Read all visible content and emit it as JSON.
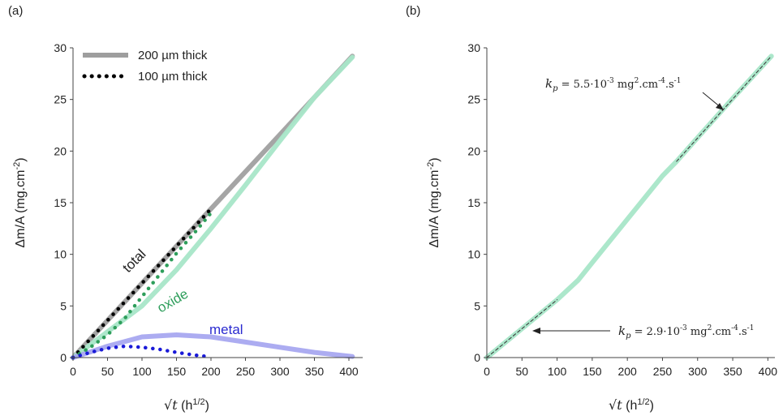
{
  "chart_data": [
    {
      "type": "line",
      "panel": "(a)",
      "xlabel_sym": "√t",
      "xlabel_unit": "(h",
      "xlabel_exp": "1/2",
      "xlabel_close": ")",
      "ylabel": "Δm/A (mg.cm",
      "ylabel_exp": "-2",
      "ylabel_close": ")",
      "xlim": [
        0,
        420
      ],
      "ylim": [
        0,
        30
      ],
      "xticks": [
        0,
        50,
        100,
        150,
        200,
        250,
        300,
        350,
        400
      ],
      "yticks": [
        0,
        5,
        10,
        15,
        20,
        25,
        30
      ],
      "legend": [
        {
          "label": "200 µm thick",
          "style": "solid",
          "color": "#9e9e9e"
        },
        {
          "label": "100 µm thick",
          "style": "dotted",
          "color": "#000000"
        }
      ],
      "annotations": [
        {
          "text": "total",
          "color": "#000000"
        },
        {
          "text": "oxide",
          "color": "#2e9e5b"
        },
        {
          "text": "metal",
          "color": "#2a2ad0"
        }
      ],
      "series": [
        {
          "thickness": "200 µm thick",
          "label": "total",
          "color": "#a0a0a0",
          "style": "solid",
          "x": [
            0,
            50,
            100,
            150,
            200,
            250,
            300,
            350,
            405
          ],
          "y": [
            0,
            3.6,
            7.2,
            10.8,
            14.4,
            18.0,
            21.6,
            25.2,
            29.2
          ]
        },
        {
          "thickness": "200 µm thick",
          "label": "oxide",
          "color": "#a8e6c8",
          "style": "solid",
          "x": [
            0,
            50,
            100,
            150,
            200,
            250,
            300,
            350,
            405
          ],
          "y": [
            0,
            2.5,
            5.0,
            8.5,
            12.5,
            16.7,
            21.0,
            25.2,
            29.1
          ]
        },
        {
          "thickness": "200 µm thick",
          "label": "metal",
          "color": "#a8a8f0",
          "style": "solid",
          "x": [
            0,
            50,
            100,
            150,
            200,
            250,
            300,
            350,
            405
          ],
          "y": [
            0,
            1.1,
            2.0,
            2.2,
            2.0,
            1.5,
            1.0,
            0.5,
            0.1
          ]
        },
        {
          "thickness": "100 µm thick",
          "label": "total",
          "color": "#000000",
          "style": "dotted",
          "x": [
            0,
            25,
            50,
            75,
            100,
            125,
            150,
            175,
            200
          ],
          "y": [
            0,
            1.8,
            3.6,
            5.4,
            7.2,
            9.0,
            10.8,
            12.6,
            14.4
          ]
        },
        {
          "thickness": "100 µm thick",
          "label": "oxide",
          "color": "#2e9e5b",
          "style": "dotted",
          "x": [
            0,
            25,
            50,
            75,
            100,
            125,
            150,
            175,
            200
          ],
          "y": [
            0,
            1.0,
            2.2,
            3.8,
            5.9,
            8.0,
            10.1,
            12.0,
            14.0
          ]
        },
        {
          "thickness": "100 µm thick",
          "label": "metal",
          "color": "#1a1ad8",
          "style": "dotted",
          "x": [
            0,
            25,
            50,
            75,
            100,
            125,
            150,
            175,
            195
          ],
          "y": [
            0,
            0.5,
            0.9,
            1.1,
            1.0,
            0.8,
            0.5,
            0.25,
            0.1
          ]
        }
      ]
    },
    {
      "type": "line",
      "panel": "(b)",
      "xlabel_sym": "√t",
      "xlabel_unit": "(h",
      "xlabel_exp": "1/2",
      "xlabel_close": ")",
      "ylabel": "Δm/A (mg.cm",
      "ylabel_exp": "-2",
      "ylabel_close": ")",
      "xlim": [
        0,
        410
      ],
      "ylim": [
        0,
        30
      ],
      "xticks": [
        0,
        50,
        100,
        150,
        200,
        250,
        300,
        350,
        400
      ],
      "yticks": [
        0,
        5,
        10,
        15,
        20,
        25,
        30
      ],
      "series": [
        {
          "label": "oxide",
          "color": "#a8e6c8",
          "style": "solid",
          "x": [
            0,
            50,
            100,
            130,
            150,
            200,
            250,
            270,
            300,
            350,
            405
          ],
          "y": [
            0,
            2.8,
            5.6,
            7.5,
            9.2,
            13.4,
            17.6,
            19.0,
            21.3,
            25.1,
            29.2
          ]
        },
        {
          "label": "fit 1",
          "color": "#333333",
          "style": "dashed",
          "x": [
            0,
            100
          ],
          "y": [
            0,
            5.6
          ]
        },
        {
          "label": "fit 2",
          "color": "#333333",
          "style": "dashed",
          "x": [
            270,
            405
          ],
          "y": [
            19.0,
            29.2
          ]
        }
      ],
      "annotations": [
        {
          "prefix": "k",
          "sub": "p",
          "text": " = 5.5·10",
          "exp": "-3",
          "mid": " mg",
          "exp2": "2",
          "tail": ".cm",
          "exp3": "-4",
          "end": ".s",
          "exp4": "-1"
        },
        {
          "prefix": "k",
          "sub": "p",
          "text": " = 2.9·10",
          "exp": "-3",
          "mid": " mg",
          "exp2": "2",
          "tail": ".cm",
          "exp3": "-4",
          "end": ".s",
          "exp4": "-1"
        }
      ]
    }
  ]
}
